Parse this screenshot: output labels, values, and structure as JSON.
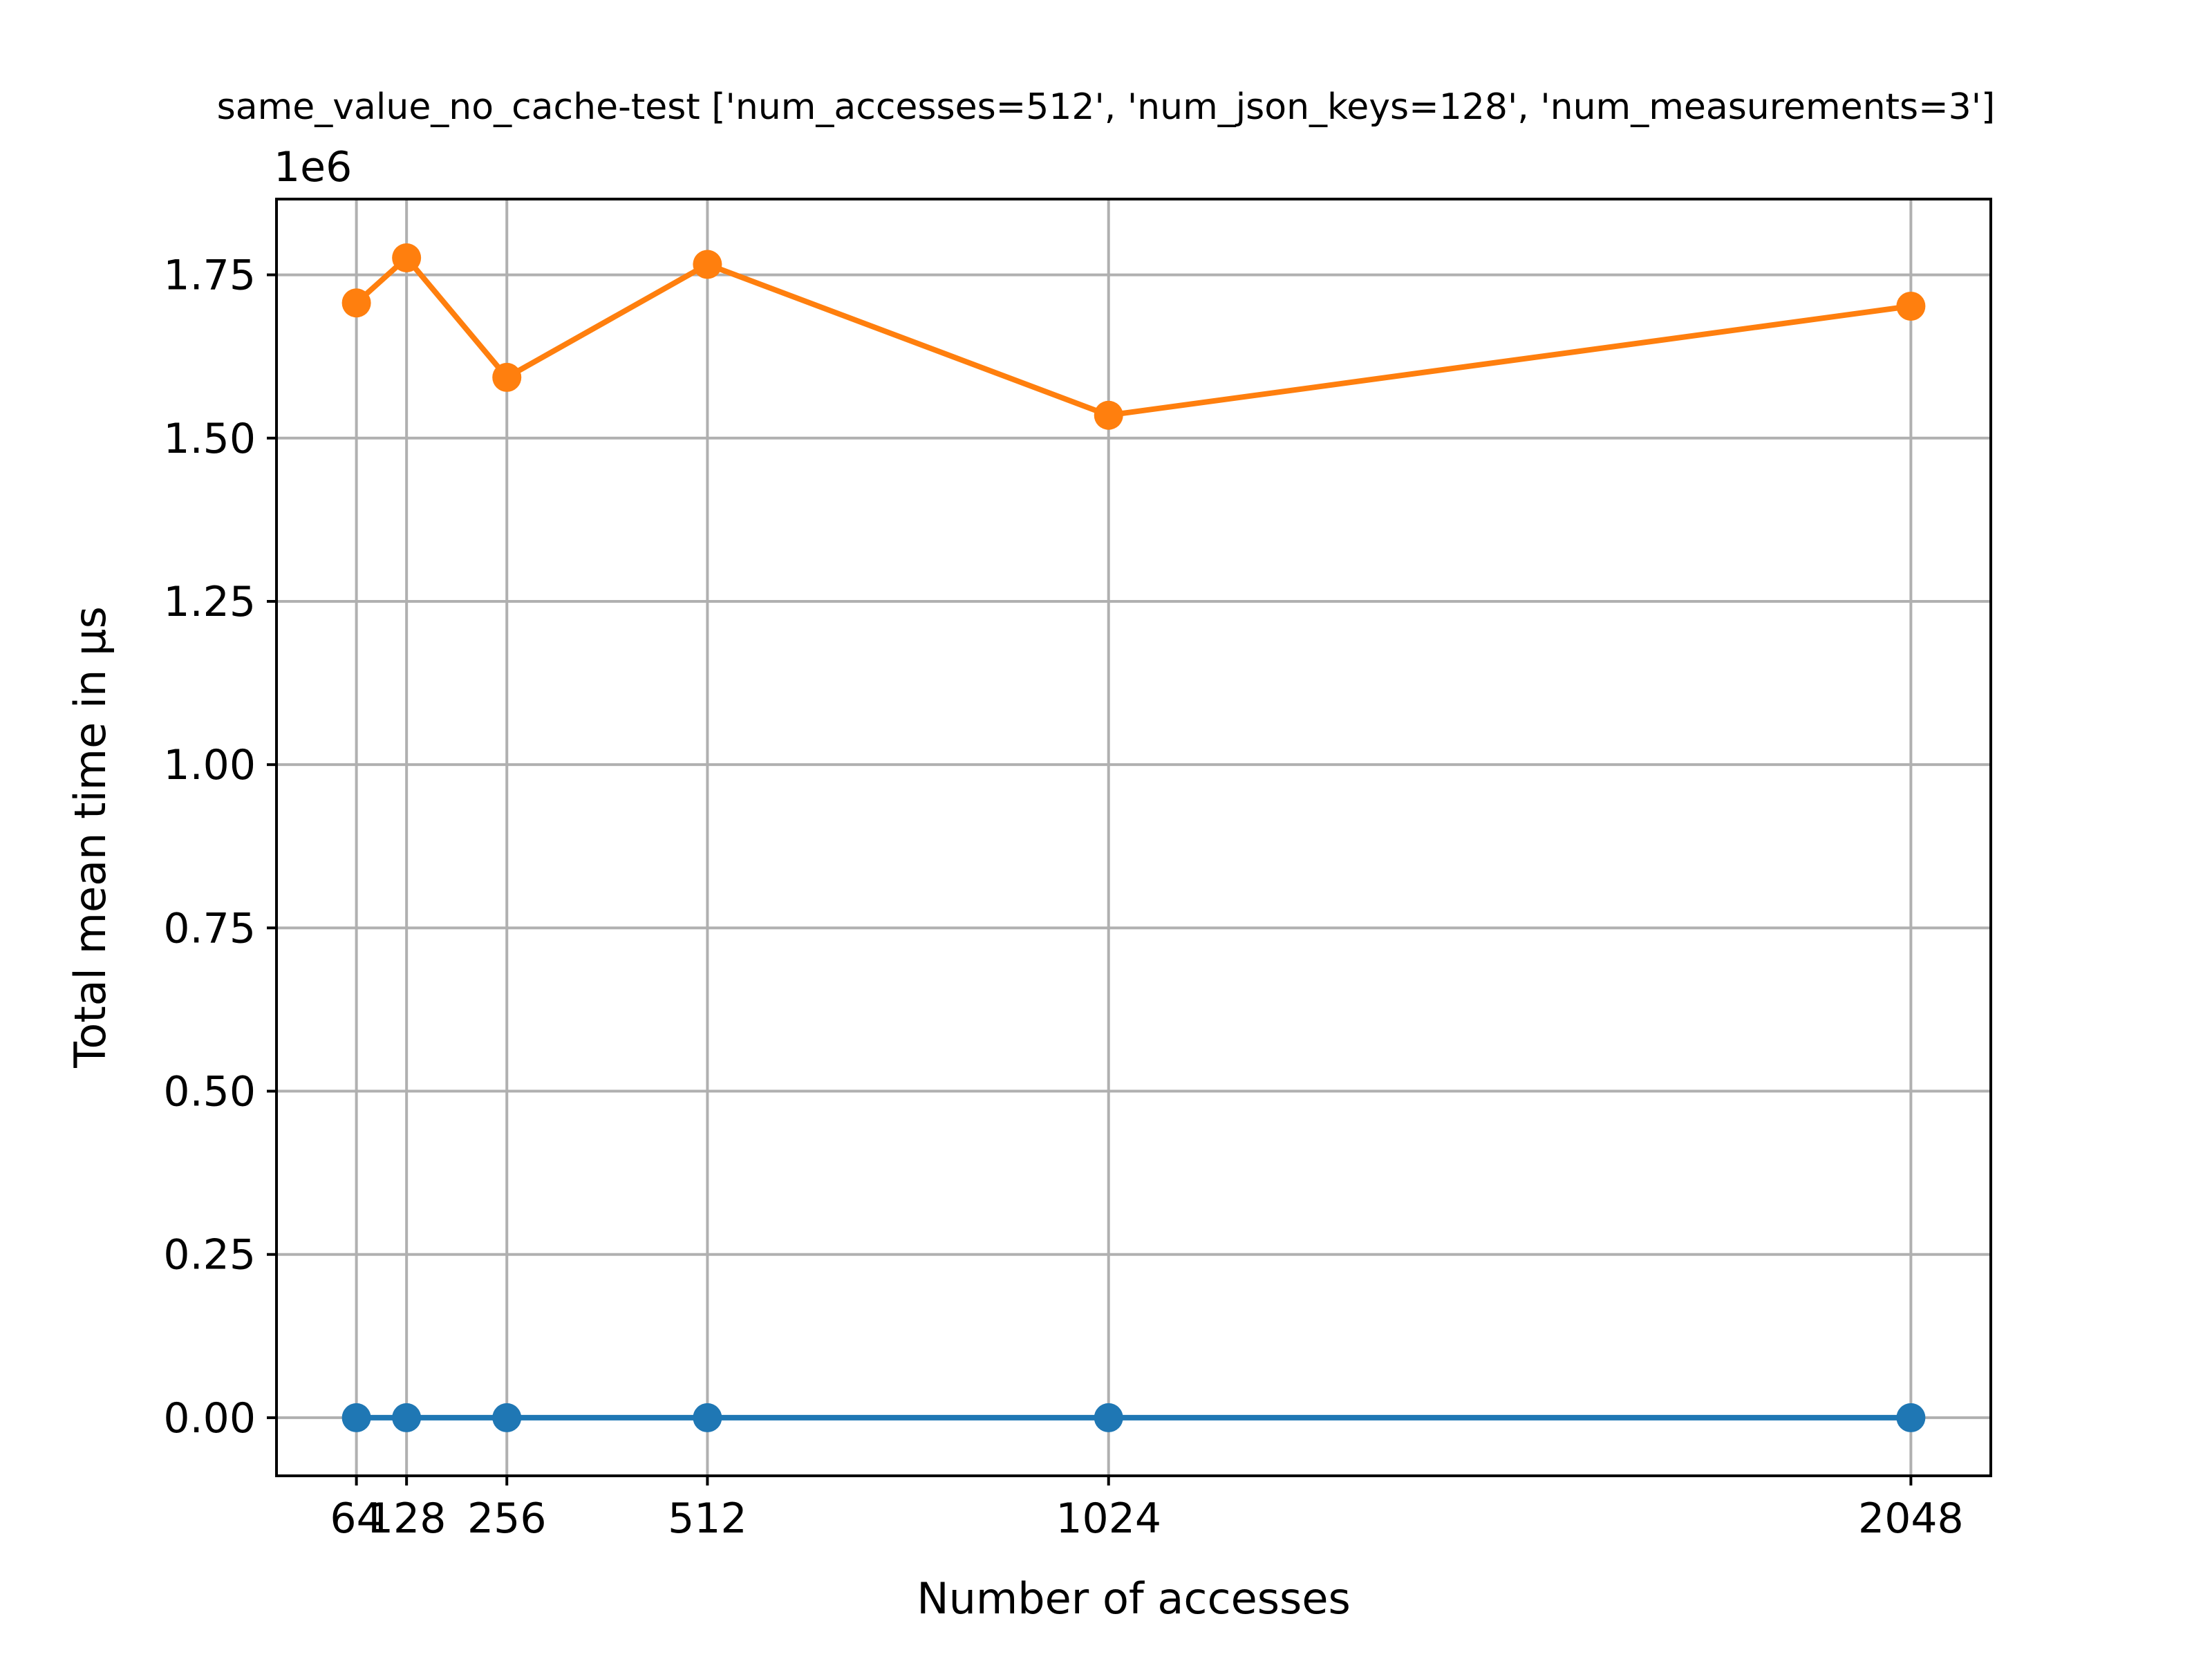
{
  "chart_data": {
    "type": "line",
    "title": "same_value_no_cache-test ['num_accesses=512', 'num_json_keys=128', 'num_measurements=3']",
    "xlabel": "Number of accesses",
    "ylabel": "Total mean time in µs",
    "y_offset_label": "1e6",
    "x": [
      64,
      128,
      256,
      512,
      1024,
      2048
    ],
    "x_tick_labels": [
      "64",
      "128",
      "256",
      "512",
      "1024",
      "2048"
    ],
    "y_ticks": [
      0,
      0.25,
      0.5,
      0.75,
      1.0,
      1.25,
      1.5,
      1.75
    ],
    "y_tick_labels": [
      "0.00",
      "0.25",
      "0.50",
      "0.75",
      "1.00",
      "1.25",
      "1.50",
      "1.75"
    ],
    "xlim": [
      -38,
      2150
    ],
    "ylim": [
      -0.089,
      1.866
    ],
    "grid": true,
    "series": [
      {
        "color": "#1f77b4",
        "values": [
          0.0,
          0.0,
          0.0,
          0.0,
          0.0,
          0.0
        ]
      },
      {
        "color": "#ff7f0e",
        "values": [
          1.707,
          1.776,
          1.593,
          1.766,
          1.535,
          1.702
        ]
      }
    ]
  }
}
